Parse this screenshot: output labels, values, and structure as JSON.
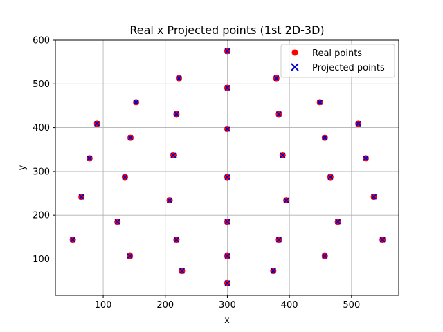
{
  "chart_data": {
    "type": "scatter",
    "title": "Real x Projected points (1st 2D-3D)",
    "xlabel": "x",
    "ylabel": "y",
    "xlim": [
      23,
      576
    ],
    "ylim": [
      17,
      600
    ],
    "xticks": [
      100,
      200,
      300,
      400,
      500
    ],
    "yticks": [
      100,
      200,
      300,
      400,
      500,
      600
    ],
    "grid": true,
    "legend_position": "top-right",
    "series": [
      {
        "name": "Real points",
        "marker": "circle",
        "color": "#ff0000",
        "points": [
          [
            300,
            575
          ],
          [
            222,
            513
          ],
          [
            379,
            513
          ],
          [
            300,
            491
          ],
          [
            153,
            458
          ],
          [
            449,
            458
          ],
          [
            218,
            431
          ],
          [
            383,
            431
          ],
          [
            90,
            409
          ],
          [
            511,
            409
          ],
          [
            300,
            397
          ],
          [
            144,
            377
          ],
          [
            457,
            377
          ],
          [
            213,
            337
          ],
          [
            389,
            337
          ],
          [
            78,
            330
          ],
          [
            523,
            330
          ],
          [
            135,
            287
          ],
          [
            300,
            287
          ],
          [
            466,
            287
          ],
          [
            65,
            242
          ],
          [
            536,
            242
          ],
          [
            207,
            234
          ],
          [
            395,
            234
          ],
          [
            123,
            185
          ],
          [
            300,
            185
          ],
          [
            478,
            185
          ],
          [
            51,
            144
          ],
          [
            218,
            144
          ],
          [
            383,
            144
          ],
          [
            550,
            144
          ],
          [
            143,
            107
          ],
          [
            300,
            107
          ],
          [
            457,
            107
          ],
          [
            227,
            73
          ],
          [
            374,
            73
          ],
          [
            300,
            45
          ]
        ]
      },
      {
        "name": "Projected points",
        "marker": "x",
        "color": "#0000cc",
        "points": [
          [
            300,
            575
          ],
          [
            222,
            513
          ],
          [
            379,
            513
          ],
          [
            300,
            491
          ],
          [
            153,
            458
          ],
          [
            449,
            458
          ],
          [
            218,
            431
          ],
          [
            383,
            431
          ],
          [
            90,
            409
          ],
          [
            511,
            409
          ],
          [
            300,
            397
          ],
          [
            144,
            377
          ],
          [
            457,
            377
          ],
          [
            213,
            337
          ],
          [
            389,
            337
          ],
          [
            78,
            330
          ],
          [
            523,
            330
          ],
          [
            135,
            287
          ],
          [
            300,
            287
          ],
          [
            466,
            287
          ],
          [
            65,
            242
          ],
          [
            536,
            242
          ],
          [
            207,
            234
          ],
          [
            395,
            234
          ],
          [
            123,
            185
          ],
          [
            300,
            185
          ],
          [
            478,
            185
          ],
          [
            51,
            144
          ],
          [
            218,
            144
          ],
          [
            383,
            144
          ],
          [
            550,
            144
          ],
          [
            143,
            107
          ],
          [
            300,
            107
          ],
          [
            457,
            107
          ],
          [
            227,
            73
          ],
          [
            374,
            73
          ],
          [
            300,
            45
          ]
        ]
      }
    ]
  }
}
